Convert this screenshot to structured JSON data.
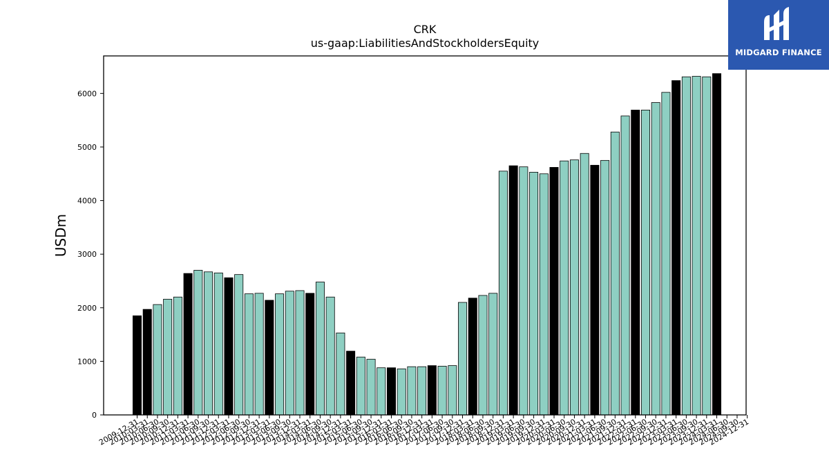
{
  "brand": {
    "name": "MIDGARD FINANCE",
    "bg_color": "#2b58b0",
    "logo_icon": "midgard-m-logo-icon"
  },
  "chart_data": {
    "type": "bar",
    "title": "CRK",
    "subtitle": "us-gaap:LiabilitiesAndStockholdersEquity",
    "ylabel": "USDm",
    "xlabel": "",
    "ylim": [
      0,
      6700
    ],
    "yticks": [
      0,
      1000,
      2000,
      3000,
      4000,
      5000,
      6000
    ],
    "grid": false,
    "colors": {
      "annual": "#000000",
      "quarterly": "#8ecfc2",
      "edge": "#000000"
    },
    "categories": [
      "2009-12-31",
      "2010-03-31",
      "2010-06-30",
      "2010-09-30",
      "2010-12-31",
      "2011-03-31",
      "2011-06-30",
      "2011-09-30",
      "2011-12-31",
      "2012-03-31",
      "2012-06-30",
      "2012-09-30",
      "2012-12-31",
      "2013-03-31",
      "2013-06-30",
      "2013-09-30",
      "2013-12-31",
      "2014-03-31",
      "2014-06-30",
      "2014-09-30",
      "2014-12-31",
      "2015-03-31",
      "2015-06-30",
      "2015-09-30",
      "2015-12-31",
      "2016-03-31",
      "2016-06-30",
      "2016-09-30",
      "2016-12-31",
      "2017-03-31",
      "2017-06-30",
      "2017-09-30",
      "2017-12-31",
      "2018-03-31",
      "2018-06-30",
      "2018-09-30",
      "2018-12-31",
      "2019-03-31",
      "2019-06-30",
      "2019-09-30",
      "2019-12-31",
      "2020-03-31",
      "2020-06-30",
      "2020-09-30",
      "2020-12-31",
      "2021-03-31",
      "2021-06-30",
      "2021-09-30",
      "2021-12-31",
      "2022-03-31",
      "2022-06-30",
      "2022-09-30",
      "2022-12-31",
      "2023-03-31",
      "2023-06-30",
      "2023-09-30",
      "2023-12-31",
      "2024-03-31",
      "2024-06-30",
      "2024-09-30",
      "2024-12-31"
    ],
    "values": [
      1850,
      1970,
      2060,
      2160,
      2200,
      2640,
      2700,
      2670,
      2650,
      2560,
      2620,
      2260,
      2270,
      2140,
      2260,
      2310,
      2320,
      2270,
      2480,
      2200,
      1530,
      1190,
      1080,
      1040,
      880,
      880,
      860,
      900,
      900,
      920,
      910,
      920,
      2100,
      2180,
      2230,
      2270,
      4550,
      4650,
      4630,
      4530,
      4500,
      4620,
      4740,
      4760,
      4880,
      4660,
      4750,
      5280,
      5580,
      5690,
      5690,
      5830,
      6020,
      6240,
      6310,
      6320,
      6310,
      6370,
      null,
      null,
      null
    ],
    "annual": [
      true,
      true,
      false,
      false,
      false,
      true,
      false,
      false,
      false,
      true,
      false,
      false,
      false,
      true,
      false,
      false,
      false,
      true,
      false,
      false,
      false,
      true,
      false,
      false,
      false,
      true,
      false,
      false,
      false,
      true,
      false,
      false,
      false,
      true,
      false,
      false,
      false,
      true,
      false,
      false,
      false,
      true,
      false,
      false,
      false,
      true,
      false,
      false,
      false,
      true,
      false,
      false,
      false,
      true,
      false,
      false,
      false,
      true,
      false,
      false,
      false
    ]
  }
}
